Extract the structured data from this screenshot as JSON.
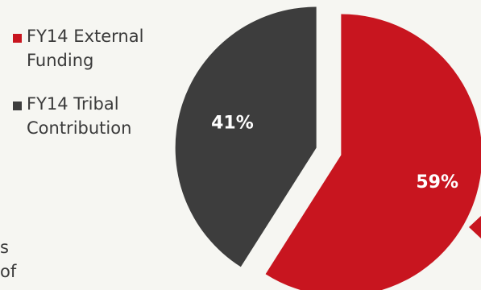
{
  "chart_data": {
    "type": "pie",
    "categories": [
      "FY14 External Funding",
      "FY14 Tribal Contribution"
    ],
    "values": [
      59,
      41
    ],
    "data_labels": [
      "59%",
      "41%"
    ],
    "legend": {
      "position": "left",
      "items": [
        {
          "label": "FY14 External\nFunding",
          "color": "#c8151f"
        },
        {
          "label": "FY14 Tribal\nContribution",
          "color": "#3d3d3d"
        }
      ]
    },
    "colors": [
      "#c8151f",
      "#3d3d3d"
    ]
  },
  "cropped_text": {
    "fragment": "s\nof"
  },
  "arrow_color": "#c8151f"
}
